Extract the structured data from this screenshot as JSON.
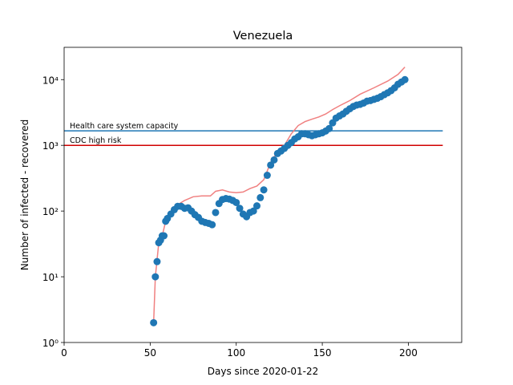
{
  "chart_data": {
    "type": "scatter",
    "title": "Venezuela",
    "x_label": "Days since 2020-01-22",
    "y_label": "Number of infected - recovered",
    "xlim": [
      0,
      231
    ],
    "xticks": [
      0,
      50,
      100,
      150,
      200
    ],
    "ylim": [
      1,
      31000
    ],
    "log_y": true,
    "yticks": [
      {
        "value": 1,
        "label": "10⁰"
      },
      {
        "value": 10,
        "label": "10¹"
      },
      {
        "value": 100,
        "label": "10²"
      },
      {
        "value": 1000,
        "label": "10³"
      },
      {
        "value": 10000,
        "label": "10⁴"
      }
    ],
    "hlines": [
      {
        "label": "Health care system capacity",
        "value": 1660,
        "color": "#1f77b4",
        "xlim": [
          0,
          220
        ]
      },
      {
        "label": "CDC high risk",
        "value": 1000,
        "color": "#d00000",
        "xlim": [
          0,
          220
        ]
      }
    ],
    "series": [
      {
        "mode": "line",
        "color": "#f08080",
        "x": [
          52,
          53,
          55,
          57,
          59,
          62,
          66,
          70,
          75,
          80,
          85,
          88,
          92,
          96,
          100,
          104,
          108,
          112,
          116,
          120,
          124,
          128,
          132,
          136,
          140,
          144,
          148,
          152,
          156,
          160,
          166,
          172,
          180,
          188,
          194,
          198
        ],
        "values": [
          2,
          10,
          33,
          42,
          70,
          95,
          125,
          145,
          165,
          170,
          170,
          200,
          210,
          195,
          190,
          195,
          220,
          240,
          300,
          550,
          800,
          1000,
          1500,
          2000,
          2300,
          2500,
          2700,
          3000,
          3500,
          4000,
          4800,
          6000,
          7500,
          9500,
          12000,
          15500
        ]
      },
      {
        "mode": "markers",
        "color": "#1f77b4",
        "x": [
          52,
          53,
          54,
          55,
          56,
          57,
          58,
          59,
          60,
          62,
          64,
          66,
          68,
          70,
          72,
          74,
          76,
          78,
          80,
          82,
          84,
          86,
          88,
          90,
          92,
          94,
          96,
          98,
          100,
          102,
          104,
          106,
          108,
          110,
          112,
          114,
          116,
          118,
          120,
          122,
          124,
          126,
          128,
          130,
          132,
          134,
          136,
          138,
          140,
          142,
          144,
          146,
          148,
          150,
          152,
          154,
          156,
          158,
          160,
          162,
          164,
          166,
          168,
          170,
          172,
          174,
          176,
          178,
          180,
          182,
          184,
          186,
          188,
          190,
          192,
          194,
          196,
          198
        ],
        "values": [
          2,
          10,
          17,
          33,
          36,
          42,
          42,
          70,
          77,
          90,
          105,
          118,
          118,
          110,
          112,
          100,
          88,
          80,
          70,
          67,
          65,
          62,
          95,
          130,
          150,
          155,
          152,
          145,
          135,
          110,
          90,
          82,
          95,
          100,
          120,
          160,
          210,
          350,
          500,
          600,
          750,
          820,
          900,
          1000,
          1100,
          1250,
          1350,
          1500,
          1500,
          1450,
          1400,
          1450,
          1500,
          1550,
          1650,
          1800,
          2200,
          2600,
          2800,
          3000,
          3300,
          3600,
          3900,
          4100,
          4200,
          4400,
          4700,
          4800,
          5000,
          5200,
          5500,
          5900,
          6300,
          6800,
          7500,
          8500,
          9200,
          10000
        ]
      }
    ]
  }
}
